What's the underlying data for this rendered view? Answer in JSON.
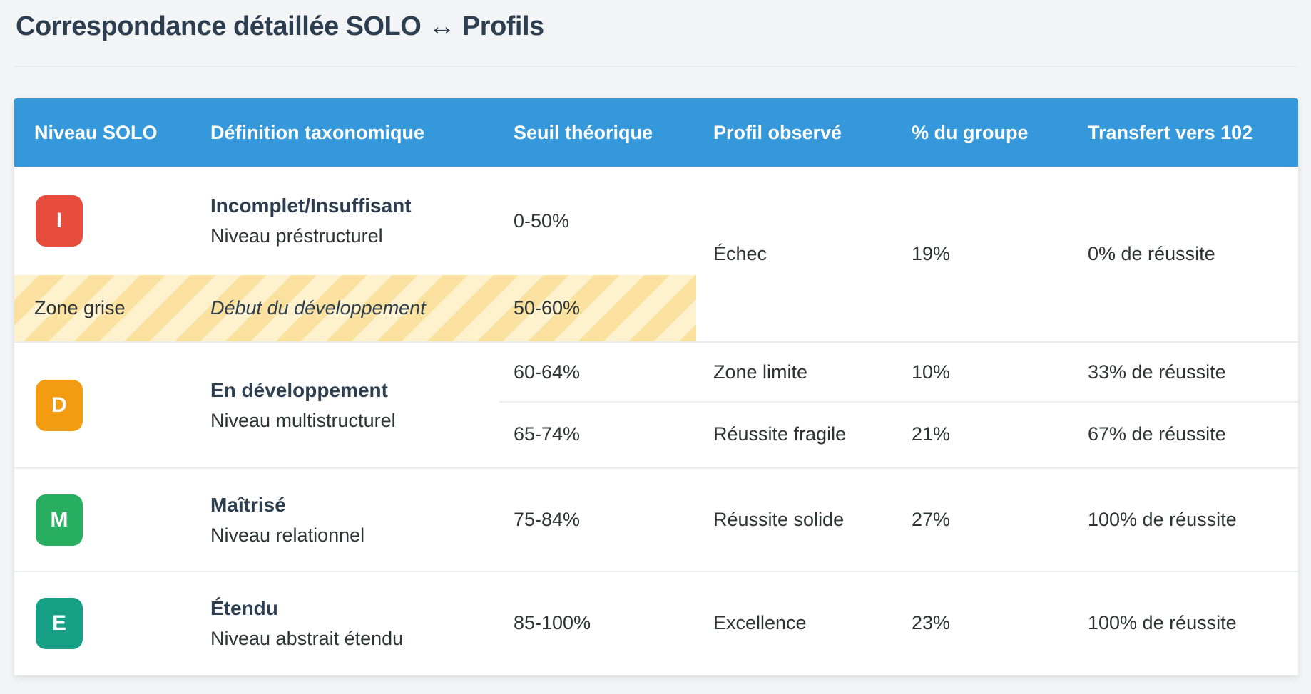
{
  "page": {
    "title": "Correspondance détaillée SOLO ↔ Profils"
  },
  "colors": {
    "header_blue": "#3498db",
    "badge_incomplet": "#e74c3c",
    "badge_developpement": "#f39c12",
    "badge_maitrise": "#27ae60",
    "badge_etendu": "#16a085",
    "zone_stripe_light": "#fdf2cd",
    "zone_stripe_dark": "#fae1a0",
    "title_navy": "#2c3e50",
    "background": "#f3f4f6"
  },
  "table": {
    "columns": [
      "Niveau SOLO",
      "Définition taxonomique",
      "Seuil théorique",
      "Profil observé",
      "% du groupe",
      "Transfert vers 102"
    ],
    "rows": {
      "incomplet": {
        "badge": "I",
        "title": "Incomplet/Insuffisant",
        "subtitle": "Niveau préstructurel",
        "seuil": "0-50%",
        "profil": "Échec",
        "pct": "19%",
        "transfert": "0% de réussite"
      },
      "zone_grise": {
        "label": "Zone grise",
        "definition": "Début du développement",
        "seuil": "50-60%"
      },
      "developpement": {
        "badge": "D",
        "title": "En développement",
        "subtitle": "Niveau multistructurel",
        "sub_rows": [
          {
            "seuil": "60-64%",
            "profil": "Zone limite",
            "pct": "10%",
            "transfert": "33% de réussite"
          },
          {
            "seuil": "65-74%",
            "profil": "Réussite fragile",
            "pct": "21%",
            "transfert": "67% de réussite"
          }
        ]
      },
      "maitrise": {
        "badge": "M",
        "title": "Maîtrisé",
        "subtitle": "Niveau relationnel",
        "seuil": "75-84%",
        "profil": "Réussite solide",
        "pct": "27%",
        "transfert": "100% de réussite"
      },
      "etendu": {
        "badge": "E",
        "title": "Étendu",
        "subtitle": "Niveau abstrait étendu",
        "seuil": "85-100%",
        "profil": "Excellence",
        "pct": "23%",
        "transfert": "100% de réussite"
      }
    }
  }
}
